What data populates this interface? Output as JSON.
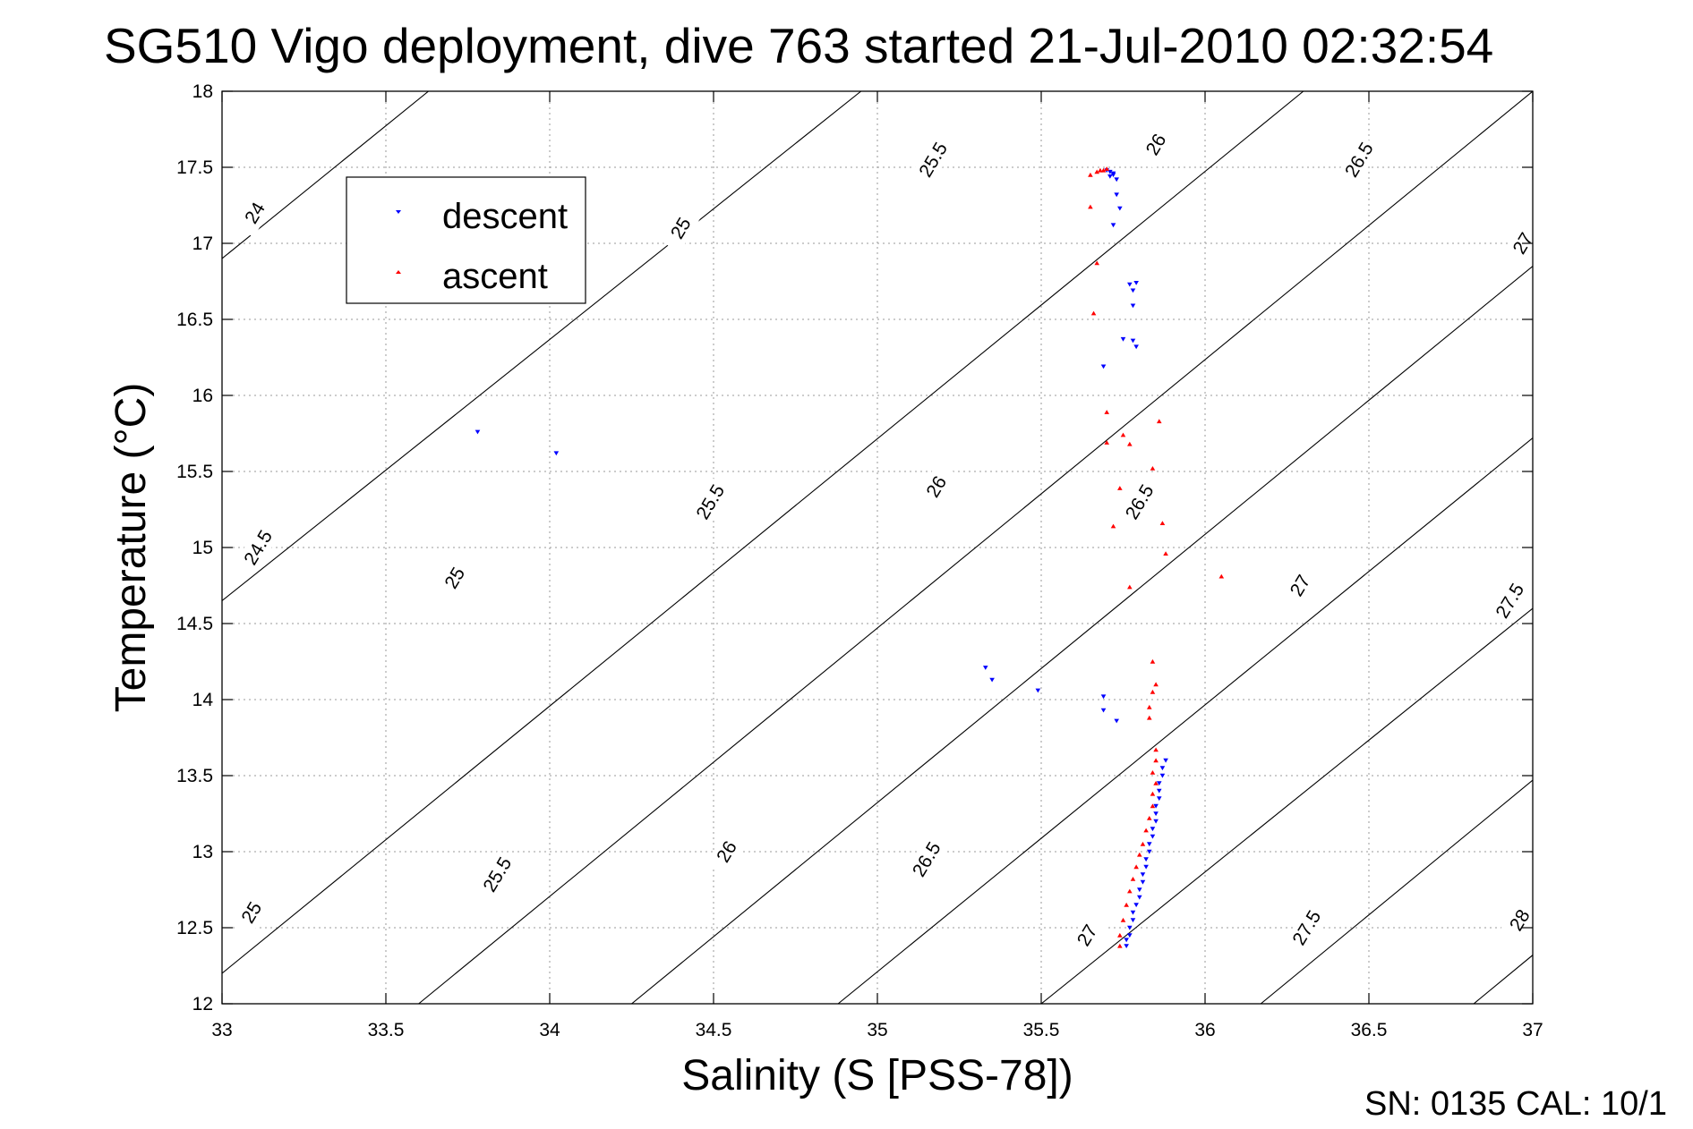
{
  "chart_data": {
    "type": "scatter",
    "title": "SG510 Vigo deployment, dive 763 started 21-Jul-2010 02:32:54",
    "xlabel": "Salinity (S [PSS-78])",
    "ylabel": "Temperature (°C)",
    "xlim": [
      33,
      37
    ],
    "ylim": [
      12,
      18
    ],
    "x_ticks": [
      "33",
      "33.5",
      "34",
      "34.5",
      "35",
      "35.5",
      "36",
      "36.5",
      "37"
    ],
    "y_ticks": [
      "12",
      "12.5",
      "13",
      "13.5",
      "14",
      "14.5",
      "15",
      "15.5",
      "16",
      "16.5",
      "17",
      "17.5",
      "18"
    ],
    "grid": true,
    "legend_position": "top-left",
    "footer": "SN: 0135  CAL: 10/1",
    "density_contours": [
      {
        "level": "24",
        "points": [
          [
            33.0,
            16.9
          ],
          [
            33.63,
            18.0
          ]
        ]
      },
      {
        "level": "24.5",
        "points": [
          [
            33.0,
            14.65
          ],
          [
            34.95,
            18.0
          ]
        ]
      },
      {
        "level": "25",
        "points": [
          [
            33.0,
            12.2
          ],
          [
            36.3,
            18.0
          ]
        ]
      },
      {
        "level": "25.5",
        "points": [
          [
            33.6,
            12.0
          ],
          [
            37.0,
            18.0
          ]
        ]
      },
      {
        "level": "26",
        "points": [
          [
            34.25,
            12.0
          ],
          [
            37.0,
            16.85
          ]
        ]
      },
      {
        "level": "26.5",
        "points": [
          [
            34.88,
            12.0
          ],
          [
            37.0,
            15.72
          ]
        ]
      },
      {
        "level": "27",
        "points": [
          [
            35.5,
            12.0
          ],
          [
            37.0,
            14.6
          ]
        ]
      },
      {
        "level": "27.5",
        "points": [
          [
            36.17,
            12.0
          ],
          [
            37.0,
            13.47
          ]
        ]
      },
      {
        "level": "28",
        "points": [
          [
            36.82,
            12.0
          ],
          [
            37.0,
            12.32
          ]
        ]
      }
    ],
    "contour_labels": [
      {
        "text": "24",
        "x": 33.1,
        "y": 17.2,
        "angle": -59
      },
      {
        "text": "25.5",
        "x": 35.17,
        "y": 17.55,
        "angle": -59
      },
      {
        "text": "26",
        "x": 35.85,
        "y": 17.65,
        "angle": -59
      },
      {
        "text": "26.5",
        "x": 36.47,
        "y": 17.55,
        "angle": -59
      },
      {
        "text": "27",
        "x": 36.97,
        "y": 17.0,
        "angle": -59
      },
      {
        "text": "25",
        "x": 34.4,
        "y": 17.1,
        "angle": -59
      },
      {
        "text": "24.5",
        "x": 33.11,
        "y": 15.0,
        "angle": -59
      },
      {
        "text": "25",
        "x": 33.71,
        "y": 14.8,
        "angle": -59
      },
      {
        "text": "25.5",
        "x": 34.49,
        "y": 15.3,
        "angle": -59
      },
      {
        "text": "26",
        "x": 35.18,
        "y": 15.4,
        "angle": -59
      },
      {
        "text": "26.5",
        "x": 35.8,
        "y": 15.3,
        "angle": -59
      },
      {
        "text": "27",
        "x": 36.29,
        "y": 14.75,
        "angle": -59
      },
      {
        "text": "27.5",
        "x": 36.93,
        "y": 14.65,
        "angle": -59
      },
      {
        "text": "25",
        "x": 33.09,
        "y": 12.6,
        "angle": -59
      },
      {
        "text": "25.5",
        "x": 33.84,
        "y": 12.85,
        "angle": -59
      },
      {
        "text": "26",
        "x": 34.54,
        "y": 13.0,
        "angle": -59
      },
      {
        "text": "26.5",
        "x": 35.15,
        "y": 12.95,
        "angle": -59
      },
      {
        "text": "27",
        "x": 35.64,
        "y": 12.45,
        "angle": -59
      },
      {
        "text": "27.5",
        "x": 36.31,
        "y": 12.5,
        "angle": -59
      },
      {
        "text": "28",
        "x": 36.96,
        "y": 12.55,
        "angle": -59
      }
    ],
    "series": [
      {
        "name": "descent",
        "color": "#0000ff",
        "marker": "triangle-down",
        "points": [
          [
            35.7,
            17.48
          ],
          [
            35.71,
            17.47
          ],
          [
            35.72,
            17.46
          ],
          [
            35.71,
            17.44
          ],
          [
            35.73,
            17.42
          ],
          [
            35.72,
            17.45
          ],
          [
            35.73,
            17.32
          ],
          [
            35.74,
            17.23
          ],
          [
            35.72,
            17.12
          ],
          [
            35.77,
            16.73
          ],
          [
            35.79,
            16.74
          ],
          [
            35.78,
            16.69
          ],
          [
            35.78,
            16.59
          ],
          [
            35.75,
            16.37
          ],
          [
            35.78,
            16.36
          ],
          [
            35.79,
            16.32
          ],
          [
            35.69,
            16.19
          ],
          [
            33.78,
            15.76
          ],
          [
            34.02,
            15.62
          ],
          [
            35.33,
            14.21
          ],
          [
            35.35,
            14.13
          ],
          [
            35.49,
            14.06
          ],
          [
            35.69,
            14.02
          ],
          [
            35.69,
            13.93
          ],
          [
            35.73,
            13.86
          ],
          [
            35.88,
            13.6
          ],
          [
            35.87,
            13.55
          ],
          [
            35.87,
            13.5
          ],
          [
            35.86,
            13.45
          ],
          [
            35.86,
            13.4
          ],
          [
            35.86,
            13.35
          ],
          [
            35.85,
            13.3
          ],
          [
            35.85,
            13.25
          ],
          [
            35.85,
            13.2
          ],
          [
            35.84,
            13.15
          ],
          [
            35.84,
            13.1
          ],
          [
            35.83,
            13.05
          ],
          [
            35.83,
            13.0
          ],
          [
            35.82,
            12.95
          ],
          [
            35.82,
            12.9
          ],
          [
            35.81,
            12.85
          ],
          [
            35.81,
            12.8
          ],
          [
            35.8,
            12.75
          ],
          [
            35.8,
            12.7
          ],
          [
            35.79,
            12.65
          ],
          [
            35.78,
            12.6
          ],
          [
            35.78,
            12.55
          ],
          [
            35.77,
            12.5
          ],
          [
            35.77,
            12.45
          ],
          [
            35.76,
            12.42
          ],
          [
            35.76,
            12.38
          ]
        ]
      },
      {
        "name": "ascent",
        "color": "#ff0000",
        "marker": "triangle-up",
        "points": [
          [
            35.65,
            17.45
          ],
          [
            35.67,
            17.47
          ],
          [
            35.68,
            17.48
          ],
          [
            35.69,
            17.48
          ],
          [
            35.7,
            17.49
          ],
          [
            35.65,
            17.24
          ],
          [
            35.67,
            16.87
          ],
          [
            35.66,
            16.54
          ],
          [
            35.7,
            15.89
          ],
          [
            35.86,
            15.83
          ],
          [
            35.75,
            15.74
          ],
          [
            35.7,
            15.69
          ],
          [
            35.77,
            15.68
          ],
          [
            35.84,
            15.52
          ],
          [
            35.74,
            15.39
          ],
          [
            35.72,
            15.14
          ],
          [
            35.87,
            15.16
          ],
          [
            35.88,
            14.96
          ],
          [
            35.77,
            14.74
          ],
          [
            36.05,
            14.81
          ],
          [
            35.84,
            14.25
          ],
          [
            35.85,
            14.1
          ],
          [
            35.84,
            14.05
          ],
          [
            35.83,
            13.95
          ],
          [
            35.83,
            13.88
          ],
          [
            35.85,
            13.67
          ],
          [
            35.85,
            13.6
          ],
          [
            35.84,
            13.52
          ],
          [
            35.85,
            13.45
          ],
          [
            35.84,
            13.38
          ],
          [
            35.84,
            13.3
          ],
          [
            35.83,
            13.22
          ],
          [
            35.82,
            13.14
          ],
          [
            35.81,
            13.05
          ],
          [
            35.8,
            12.98
          ],
          [
            35.79,
            12.9
          ],
          [
            35.78,
            12.82
          ],
          [
            35.77,
            12.74
          ],
          [
            35.76,
            12.65
          ],
          [
            35.75,
            12.55
          ],
          [
            35.74,
            12.45
          ],
          [
            35.74,
            12.38
          ]
        ]
      }
    ]
  }
}
